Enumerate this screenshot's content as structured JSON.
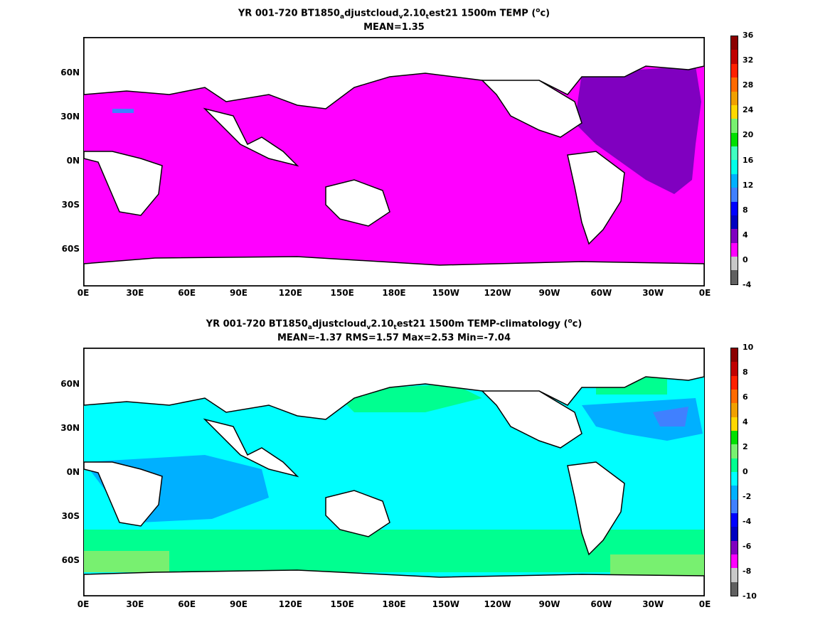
{
  "panel1": {
    "title_parts": [
      "YR 001-720 BT1850",
      "a",
      "djustcloud",
      "v",
      "2.10",
      "t",
      "est21 1500m TEMP (",
      "o",
      "c)"
    ],
    "subtitle": "MEAN=1.35",
    "colorbar_ticks": [
      "36",
      "32",
      "28",
      "24",
      "20",
      "16",
      "12",
      "8",
      "4",
      "0",
      "-4"
    ],
    "colorbar_colors": [
      "#8b0000",
      "#c00000",
      "#ff2000",
      "#ff6a00",
      "#f0a000",
      "#ffd800",
      "#78f070",
      "#00e000",
      "#40ffc0",
      "#00ffe8",
      "#00b0ff",
      "#4080ff",
      "#0000ff",
      "#0000c0",
      "#8000c0",
      "#ff00ff",
      "#c8c8c8",
      "#606060"
    ]
  },
  "panel2": {
    "title_parts": [
      "YR 001-720 BT1850",
      "a",
      "djustcloud",
      "v",
      "2.10",
      "t",
      "est21 1500m TEMP-climatology (",
      "o",
      "c)"
    ],
    "subtitle": "MEAN=-1.37   RMS=1.57   Max=2.53   Min=-7.04",
    "colorbar_ticks": [
      "10",
      "8",
      "6",
      "4",
      "2",
      "0",
      "-2",
      "-4",
      "-6",
      "-8",
      "-10"
    ],
    "colorbar_colors": [
      "#8b0000",
      "#c00000",
      "#ff2000",
      "#ff6a00",
      "#f0a000",
      "#ffd800",
      "#00e000",
      "#78f070",
      "#00ff90",
      "#00ffff",
      "#00b0ff",
      "#4080ff",
      "#0000ff",
      "#0000c0",
      "#8000c0",
      "#ff00ff",
      "#c8c8c8",
      "#606060"
    ]
  },
  "axes": {
    "y_labels": [
      "60N",
      "30N",
      "0N",
      "30S",
      "60S"
    ],
    "x_labels": [
      "0E",
      "30E",
      "60E",
      "90E",
      "120E",
      "150E",
      "180E",
      "150W",
      "120W",
      "90W",
      "60W",
      "30W",
      "0E"
    ]
  }
}
